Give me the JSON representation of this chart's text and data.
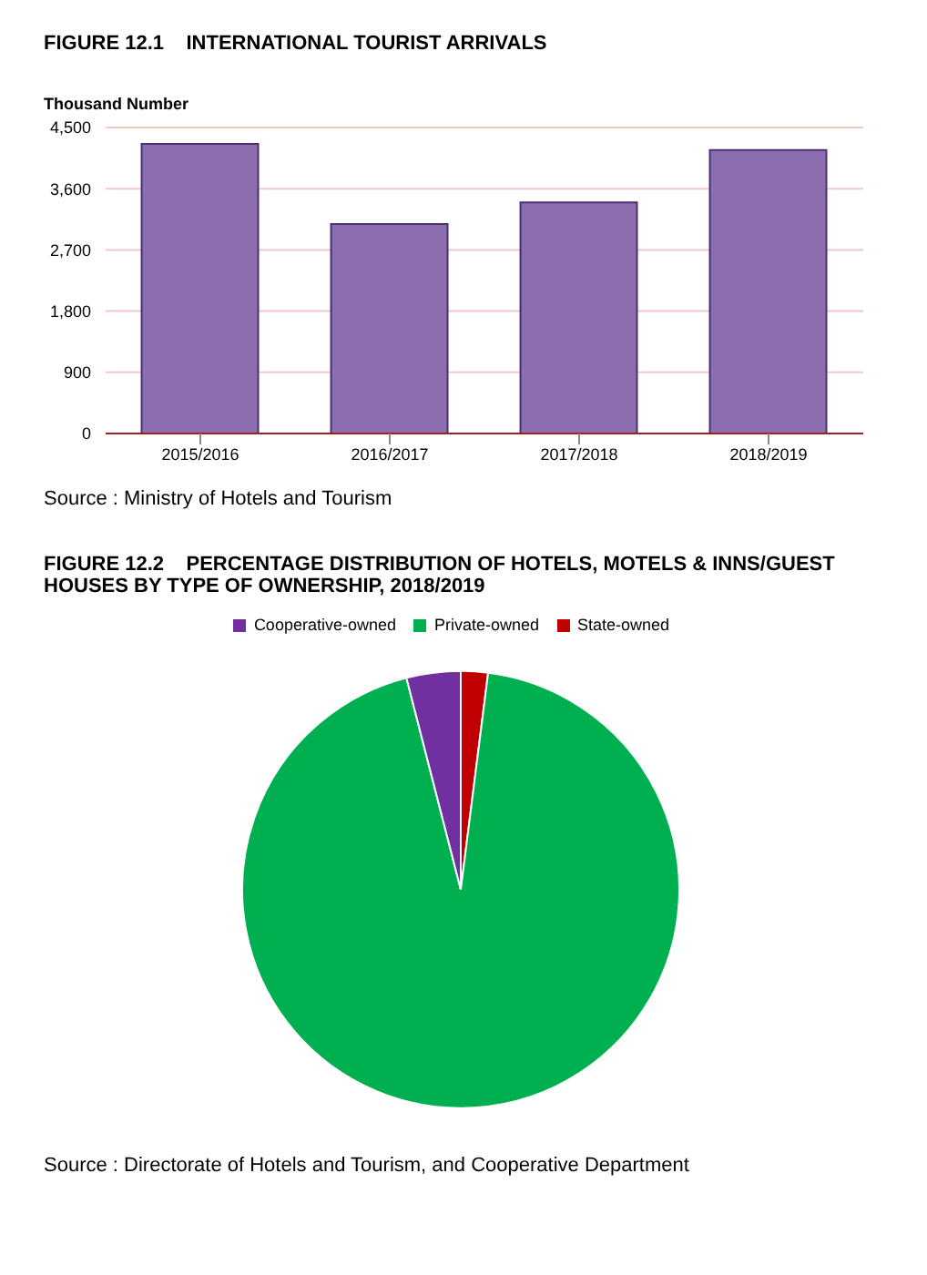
{
  "chart_data": [
    {
      "type": "bar",
      "title": "FIGURE 12.1    INTERNATIONAL TOURIST ARRIVALS",
      "ylabel": "Thousand Number",
      "categories": [
        "2015/2016",
        "2016/2017",
        "2017/2018",
        "2018/2019"
      ],
      "values": [
        4260,
        3080,
        3400,
        4170
      ],
      "color": "#8b6db0",
      "ylim": [
        0,
        4500
      ],
      "yticks": [
        0,
        {
          "value": 900,
          "label": "900"
        },
        {
          "value": 1800,
          "label": "1,800"
        },
        {
          "value": 2700,
          "label": "2,700"
        },
        {
          "value": 3600,
          "label": "3,600"
        },
        {
          "value": 4500,
          "label": "4,500"
        }
      ],
      "grid": "y",
      "legend": false,
      "annotations": [
        "Source : Ministry of Hotels and Tourism"
      ]
    },
    {
      "type": "pie",
      "title": "FIGURE 12.2    PERCENTAGE DISTRIBUTION OF HOTELS, MOTELS & INNS/GUEST HOUSES BY TYPE OF OWNERSHIP, 2018/2019",
      "categories": [
        "State-owned",
        "Private-owned",
        "Cooperative-owned"
      ],
      "values": [
        2,
        94,
        4
      ],
      "colors": [
        "#c00000",
        "#00b050",
        "#7030a0"
      ],
      "legend": "top",
      "annotations": [
        "Source : Directorate of Hotels and Tourism, and Cooperative Department"
      ]
    }
  ]
}
